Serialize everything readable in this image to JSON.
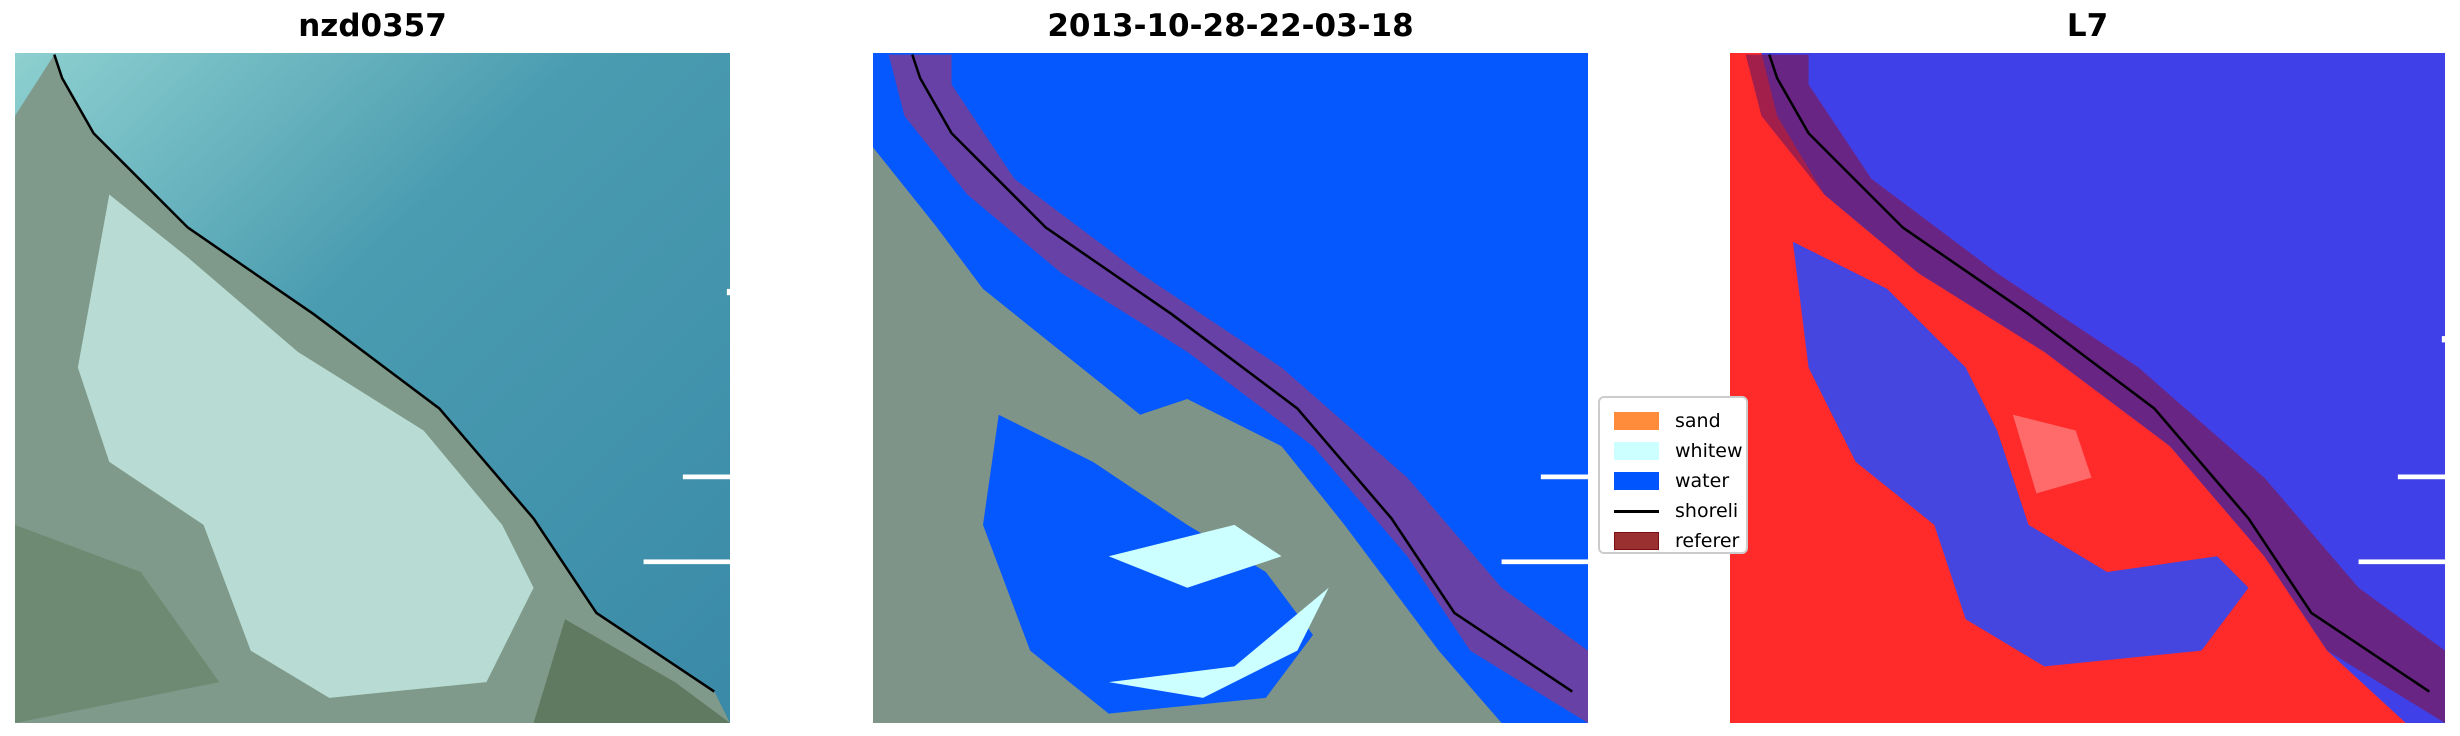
{
  "panels": [
    {
      "title": "nzd0357",
      "kind": "rgb-image"
    },
    {
      "title": "2013-10-28-22-03-18",
      "kind": "classified-image"
    },
    {
      "title": "L7",
      "kind": "mndwi-image"
    }
  ],
  "legend": {
    "items": [
      {
        "label": "sand",
        "color": "#ff8c3a"
      },
      {
        "label": "whitew",
        "color": "#ccffff"
      },
      {
        "label": "water",
        "color": "#0055ff"
      },
      {
        "label": "shoreli",
        "color": "#000000"
      },
      {
        "label": "referer",
        "color": "#9b3030"
      }
    ]
  },
  "colors": {
    "water": "#0055ff",
    "sand": "#ff8c3a",
    "whitewater": "#ccffff",
    "reference_buffer": "#9b3030",
    "shoreline": "#000000"
  }
}
